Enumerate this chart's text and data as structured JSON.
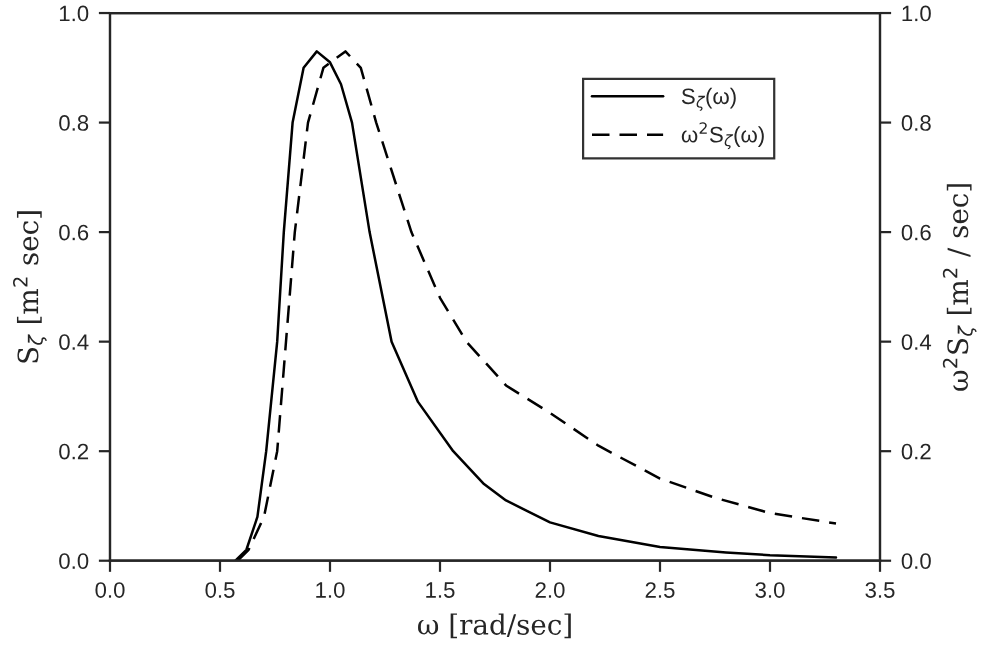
{
  "chart_data": {
    "type": "line",
    "xlabel": "ω [rad/sec]",
    "ylabel": "S$_{ζ}$ [m$^{2}$ sec]",
    "y2label": "ω$^{2}$S$_{ζ}$ [m$^{2}$ / sec]",
    "xlim": [
      0,
      3.5
    ],
    "xticks": [
      {
        "value": 0,
        "label": "0.0"
      },
      0.5,
      {
        "value": 1,
        "label": "1.0"
      },
      1.5,
      {
        "value": 2,
        "label": "2.0"
      },
      2.5,
      {
        "value": 3,
        "label": "3.0"
      },
      3.5
    ],
    "ylim": [
      0,
      1
    ],
    "yticks": [
      {
        "value": 0,
        "label": "0.0"
      },
      0.2,
      0.4,
      0.6,
      0.8,
      {
        "value": 1,
        "label": "1.0"
      }
    ],
    "y2lim": [
      0,
      1
    ],
    "y2ticks": [
      {
        "value": 0,
        "label": "0.0"
      },
      0.2,
      0.4,
      0.6,
      0.8,
      {
        "value": 1,
        "label": "1.0"
      }
    ],
    "grid": false,
    "legend": "top right",
    "marker": "none",
    "series": [
      {
        "name": "S$_{ζ}$(ω)",
        "color": "#000000",
        "line_style": "solid",
        "x": [
          0.57,
          0.62,
          0.67,
          0.71,
          0.76,
          0.79,
          0.83,
          0.88,
          0.94,
          1.0,
          1.05,
          1.1,
          1.18,
          1.28,
          1.4,
          1.56,
          1.7,
          1.8,
          2.0,
          2.22,
          2.5,
          2.8,
          3.0,
          3.3
        ],
        "values": [
          0,
          0.02,
          0.08,
          0.2,
          0.4,
          0.6,
          0.8,
          0.9,
          0.93,
          0.91,
          0.87,
          0.8,
          0.6,
          0.4,
          0.29,
          0.2,
          0.14,
          0.11,
          0.07,
          0.045,
          0.025,
          0.015,
          0.01,
          0.006
        ]
      },
      {
        "name": "ω$^{2}$S$_{ζ}$(ω)",
        "color": "#000000",
        "line_style": "dashed",
        "axis": "y2",
        "x": [
          0.58,
          0.63,
          0.7,
          0.76,
          0.8,
          0.84,
          0.9,
          0.97,
          1.07,
          1.14,
          1.21,
          1.37,
          1.5,
          1.62,
          1.8,
          2.0,
          2.22,
          2.5,
          2.75,
          3.0,
          3.3
        ],
        "values": [
          0,
          0.02,
          0.08,
          0.2,
          0.4,
          0.6,
          0.8,
          0.9,
          0.93,
          0.9,
          0.8,
          0.6,
          0.48,
          0.4,
          0.32,
          0.27,
          0.21,
          0.15,
          0.115,
          0.087,
          0.068
        ]
      }
    ]
  }
}
